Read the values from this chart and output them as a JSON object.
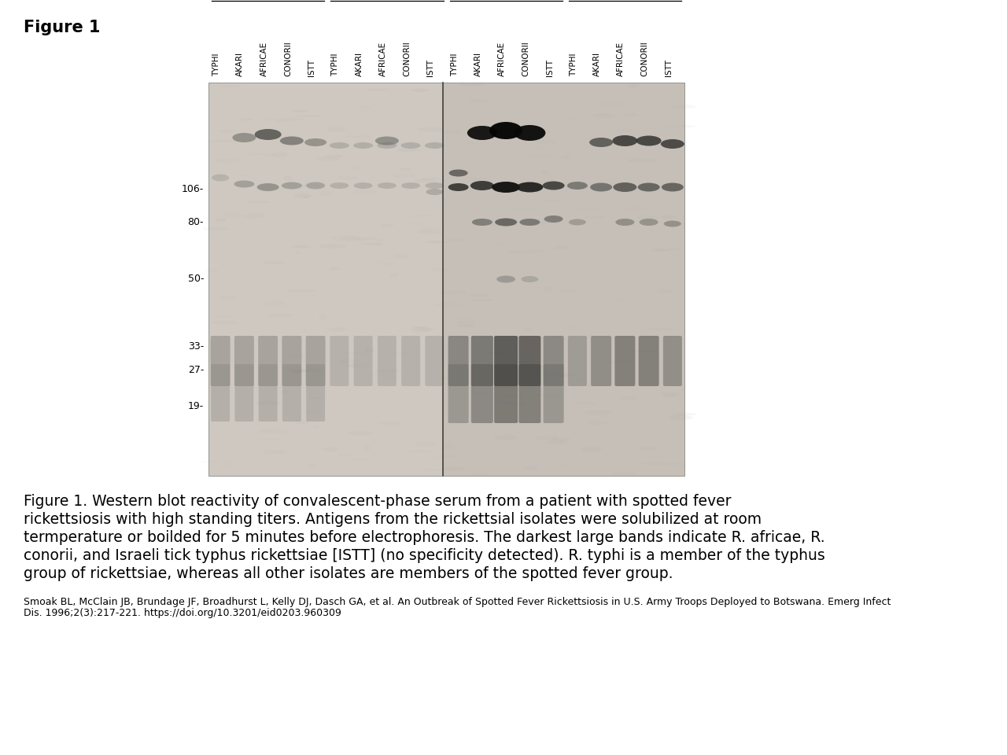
{
  "figure_title": "Figure 1",
  "title_fontsize": 15,
  "title_bold": true,
  "caption_lines": [
    "Figure 1. Western blot reactivity of convalescent-phase serum from a patient with spotted fever",
    "rickettsiosis with high standing titers. Antigens from the rickettsial isolates were solubilized at room",
    "termperature or boilded for 5 minutes before electrophoresis. The darkest large bands indicate R. africae, R.",
    "conorii, and Israeli tick typhus rickettsiae [ISTT] (no specificity detected). R. typhi is a member of the typhus",
    "group of rickettsiae, whereas all other isolates are members of the spotted fever group."
  ],
  "caption_fontsize": 13.5,
  "citation_lines": [
    "Smoak BL, McClain JB, Brundage JF, Broadhurst L, Kelly DJ, Dasch GA, et al. An Outbreak of Spotted Fever Rickettsiosis in U.S. Army Troops Deployed to Botswana. Emerg Infect",
    "Dis. 1996;2(3):217-221. https://doi.org/10.3201/eid0203.960309"
  ],
  "citation_fontsize": 9,
  "column_labels": [
    "TYPHI",
    "AKARI",
    "AFRICAE",
    "CONORII",
    "ISTT"
  ],
  "bg_color": "#ffffff"
}
